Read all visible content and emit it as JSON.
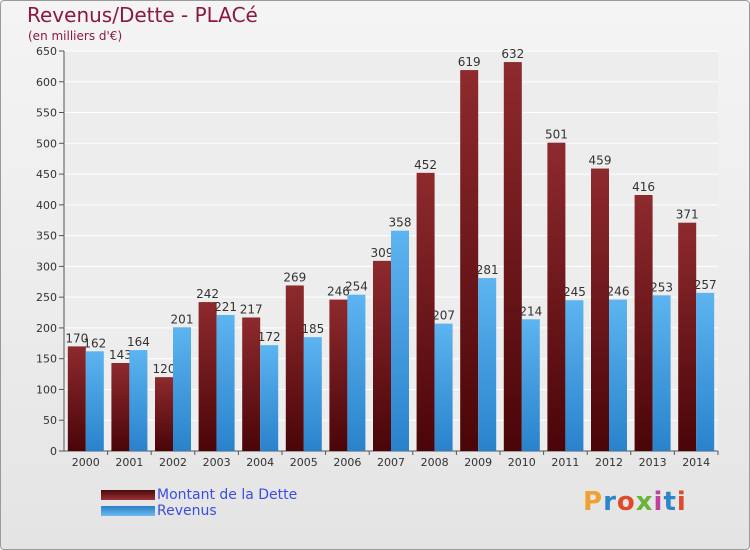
{
  "title": "Revenus/Dette - PLACé",
  "subtitle": "(en milliers d'€)",
  "logo": {
    "text": "Proxiti",
    "colors": [
      "#f0a030",
      "#2e86c8",
      "#e04a2a",
      "#6bb33a",
      "#c040a0",
      "#2e86c8",
      "#e04a2a"
    ]
  },
  "chart_data": {
    "type": "bar",
    "categories": [
      "2000",
      "2001",
      "2002",
      "2003",
      "2004",
      "2005",
      "2006",
      "2007",
      "2008",
      "2009",
      "2010",
      "2011",
      "2012",
      "2013",
      "2014"
    ],
    "series": [
      {
        "name": "Montant de la Dette",
        "color": "#7a1518",
        "values": [
          170,
          143,
          120,
          242,
          217,
          269,
          246,
          309,
          452,
          619,
          632,
          501,
          459,
          416,
          371
        ]
      },
      {
        "name": "Revenus",
        "color": "#3f9ee6",
        "values": [
          162,
          164,
          201,
          221,
          172,
          185,
          254,
          358,
          207,
          281,
          214,
          245,
          246,
          253,
          257
        ]
      }
    ],
    "yticks": [
      0,
      50,
      100,
      150,
      200,
      250,
      300,
      350,
      400,
      450,
      500,
      550,
      600,
      650
    ],
    "ylim": [
      0,
      650
    ],
    "grid": true,
    "legend_position": "bottom-left"
  }
}
